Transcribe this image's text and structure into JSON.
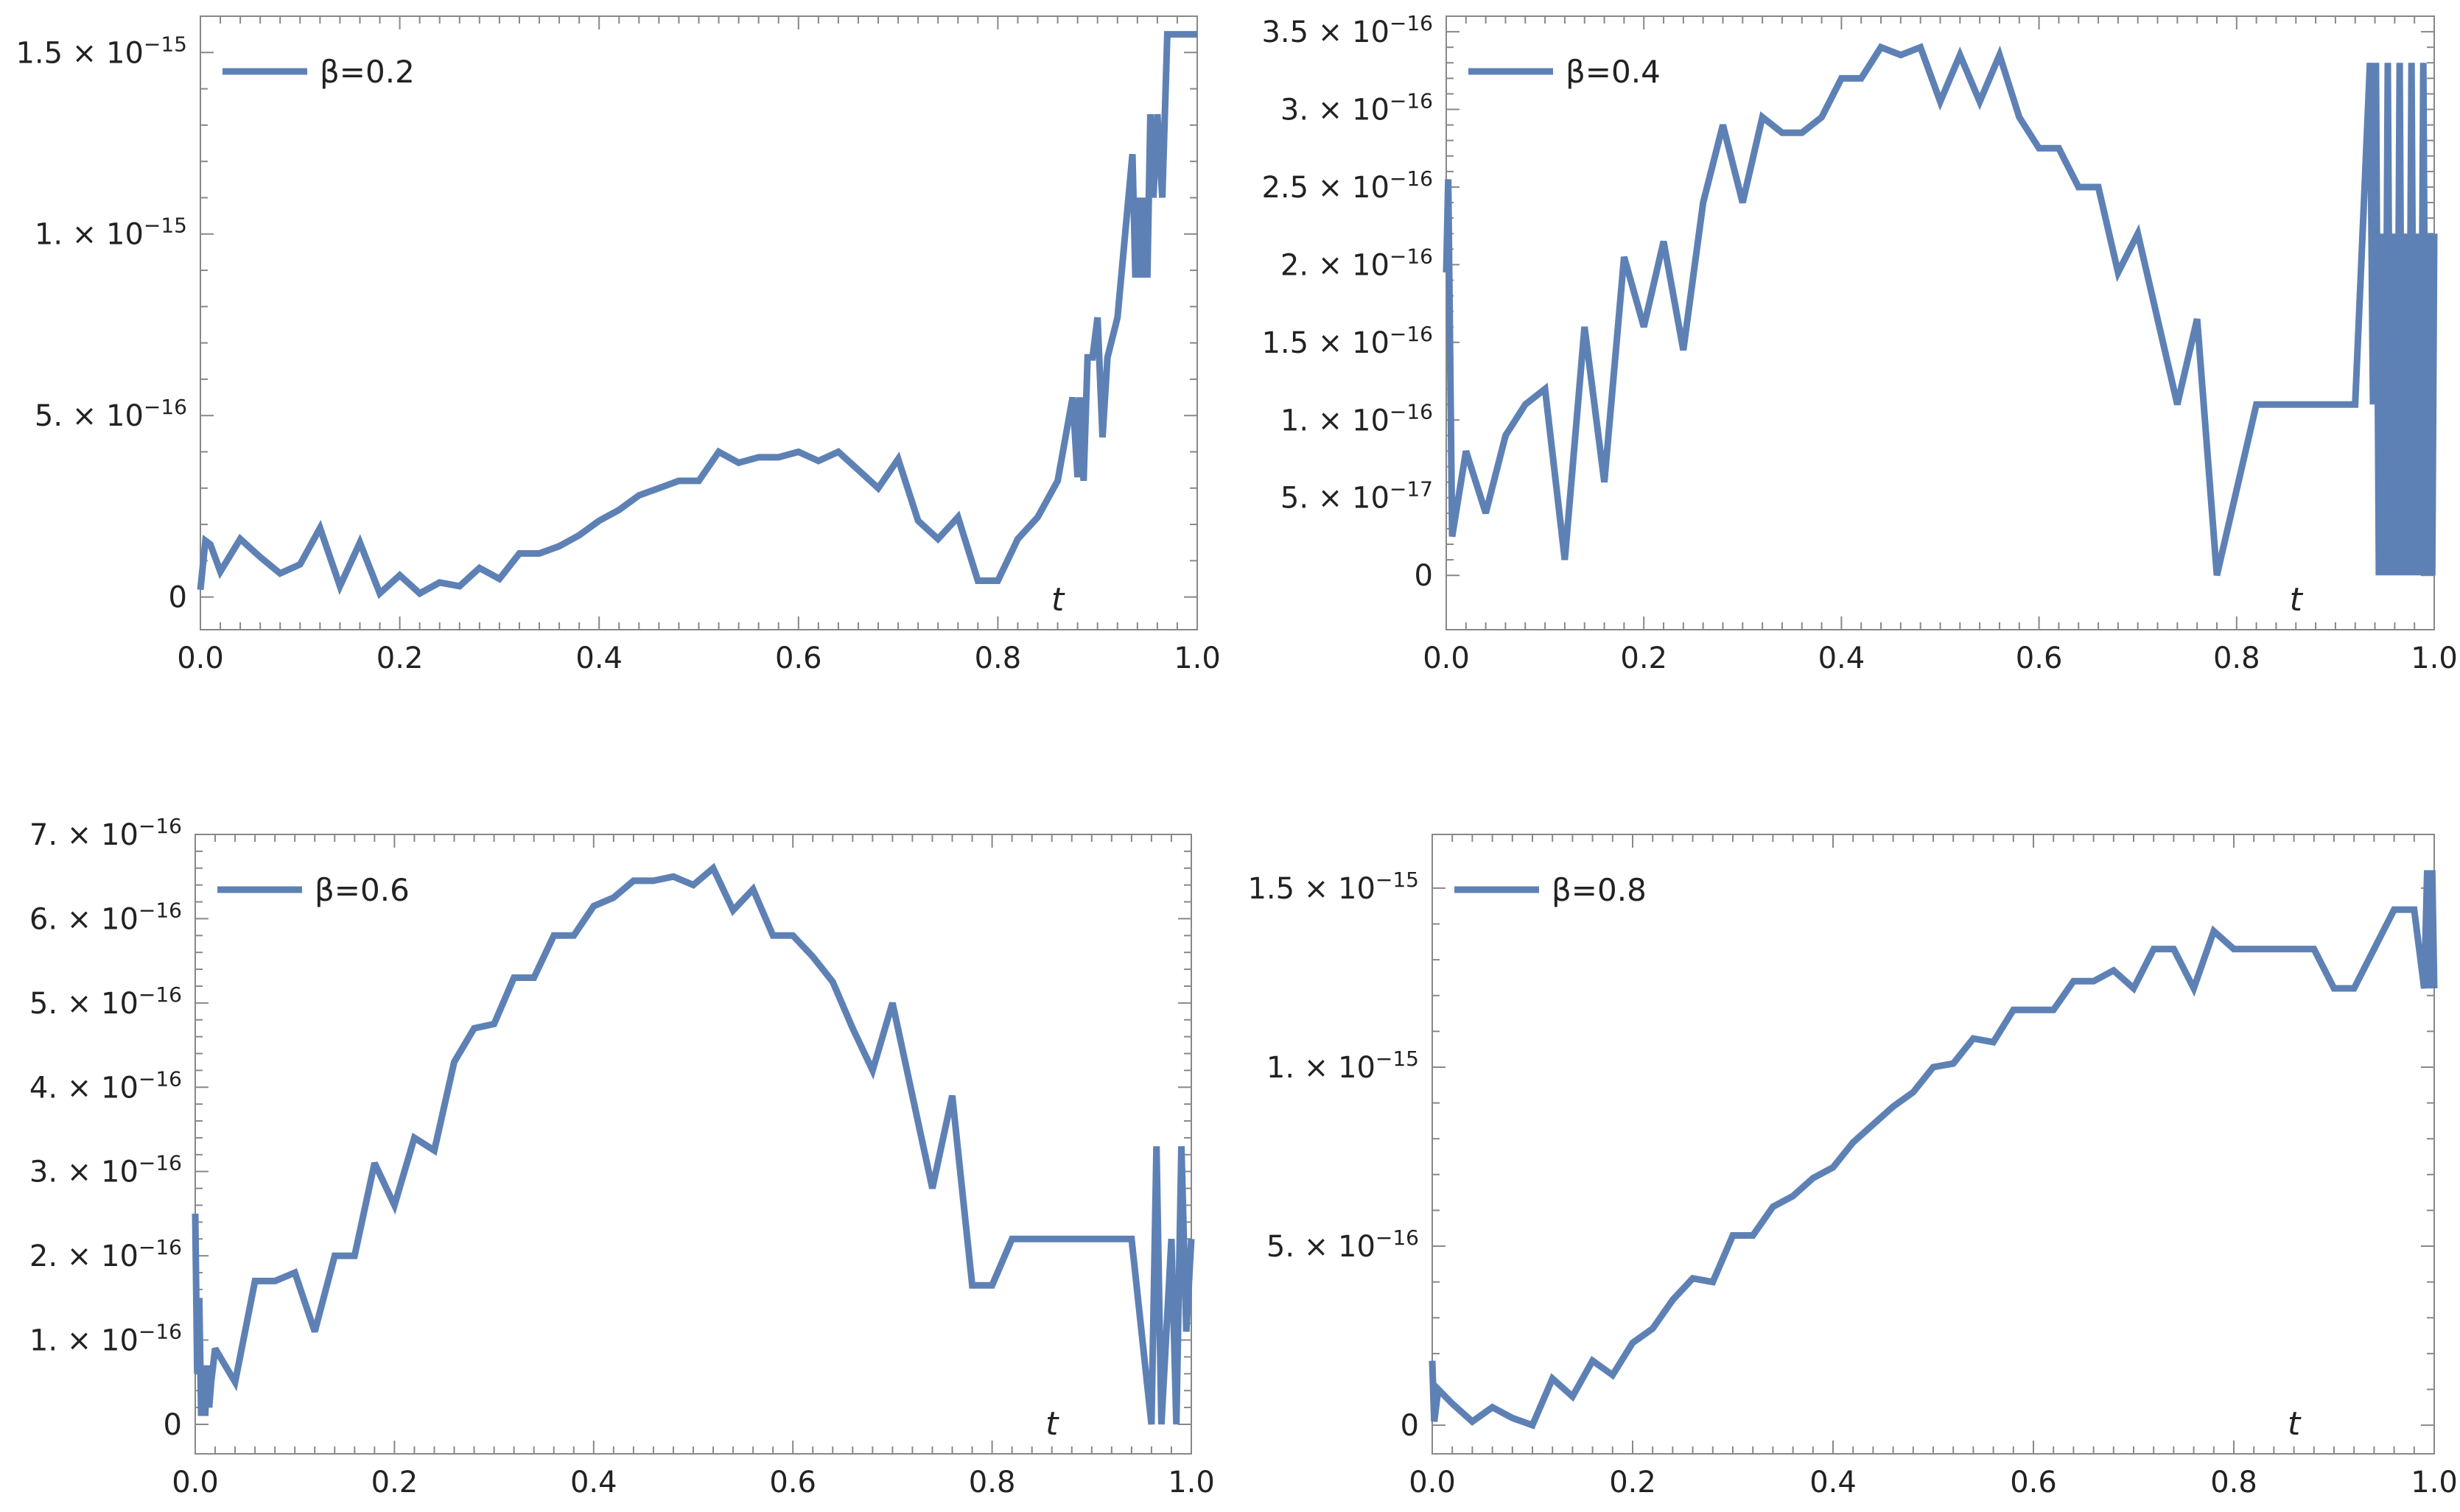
{
  "colors": {
    "series": "#5e81b5",
    "frame": "#888888",
    "text": "#222222"
  },
  "chart_data": [
    {
      "type": "line",
      "xlabel": "t",
      "xlim": [
        0,
        1
      ],
      "ylim": [
        -9e-17,
        1.6e-15
      ],
      "xticks": [
        {
          "value": 0,
          "label": "0.0"
        },
        {
          "value": 0.2,
          "label": "0.2"
        },
        {
          "value": 0.4,
          "label": "0.4"
        },
        {
          "value": 0.6,
          "label": "0.6"
        },
        {
          "value": 0.8,
          "label": "0.8"
        },
        {
          "value": 1.0,
          "label": "1.0"
        }
      ],
      "yticks": [
        {
          "value": 0,
          "mant": "0",
          "exp": ""
        },
        {
          "value": 5e-16,
          "mant": "5.",
          "exp": "−16"
        },
        {
          "value": 1e-15,
          "mant": "1.",
          "exp": "−15"
        },
        {
          "value": 1.5e-15,
          "mant": "1.5",
          "exp": "−15"
        }
      ],
      "series": [
        {
          "name": "β=0.2",
          "x": [
            0.0,
            0.005,
            0.01,
            0.02,
            0.04,
            0.06,
            0.08,
            0.1,
            0.12,
            0.14,
            0.16,
            0.18,
            0.2,
            0.22,
            0.24,
            0.26,
            0.28,
            0.3,
            0.32,
            0.34,
            0.36,
            0.38,
            0.4,
            0.42,
            0.44,
            0.46,
            0.48,
            0.5,
            0.52,
            0.54,
            0.56,
            0.58,
            0.6,
            0.62,
            0.64,
            0.66,
            0.68,
            0.7,
            0.72,
            0.74,
            0.76,
            0.78,
            0.8,
            0.82,
            0.84,
            0.86,
            0.875,
            0.88,
            0.882,
            0.886,
            0.89,
            0.895,
            0.9,
            0.905,
            0.91,
            0.92,
            0.935,
            0.938,
            0.941,
            0.944,
            0.947,
            0.95,
            0.953,
            0.956,
            0.96,
            0.965,
            0.97,
            0.98,
            0.99,
            1.0
          ],
          "y": [
            2e-17,
            1.55e-16,
            1.45e-16,
            7e-17,
            1.6e-16,
            1.1e-16,
            6.5e-17,
            9e-17,
            1.9e-16,
            3e-17,
            1.5e-16,
            1e-17,
            6e-17,
            1e-17,
            4e-17,
            3e-17,
            8e-17,
            5e-17,
            1.2e-16,
            1.2e-16,
            1.4e-16,
            1.7e-16,
            2.1e-16,
            2.4e-16,
            2.8e-16,
            3e-16,
            3.2e-16,
            3.2e-16,
            4e-16,
            3.7e-16,
            3.85e-16,
            3.85e-16,
            4e-16,
            3.75e-16,
            4e-16,
            3.5e-16,
            3e-16,
            3.8e-16,
            2.1e-16,
            1.6e-16,
            2.2e-16,
            4.5e-17,
            4.5e-17,
            1.6e-16,
            2.2e-16,
            3.2e-16,
            5.5e-16,
            3.3e-16,
            5.5e-16,
            3.2e-16,
            6.6e-16,
            6.6e-16,
            7.7e-16,
            4.4e-16,
            6.6e-16,
            7.7e-16,
            1.22e-15,
            8.8e-16,
            1.1e-15,
            8.8e-16,
            1.1e-15,
            8.8e-16,
            1.33e-15,
            1.1e-15,
            1.33e-15,
            1.1e-15,
            1.55e-15,
            1.55e-15,
            1.55e-15,
            1.55e-15
          ]
        }
      ]
    },
    {
      "type": "line",
      "xlabel": "t",
      "xlim": [
        0,
        1
      ],
      "ylim": [
        -3.5e-17,
        3.6e-16
      ],
      "xticks": [
        {
          "value": 0,
          "label": "0.0"
        },
        {
          "value": 0.2,
          "label": "0.2"
        },
        {
          "value": 0.4,
          "label": "0.4"
        },
        {
          "value": 0.6,
          "label": "0.6"
        },
        {
          "value": 0.8,
          "label": "0.8"
        },
        {
          "value": 1.0,
          "label": "1.0"
        }
      ],
      "yticks": [
        {
          "value": 0,
          "mant": "0",
          "exp": ""
        },
        {
          "value": 5e-17,
          "mant": "5.",
          "exp": "−17"
        },
        {
          "value": 1e-16,
          "mant": "1.",
          "exp": "−16"
        },
        {
          "value": 1.5e-16,
          "mant": "1.5",
          "exp": "−16"
        },
        {
          "value": 2e-16,
          "mant": "2.",
          "exp": "−16"
        },
        {
          "value": 2.5e-16,
          "mant": "2.5",
          "exp": "−16"
        },
        {
          "value": 3e-16,
          "mant": "3.",
          "exp": "−16"
        },
        {
          "value": 3.5e-16,
          "mant": "3.5",
          "exp": "−16"
        }
      ],
      "series": [
        {
          "name": "β=0.4",
          "x": [
            0.0,
            0.002,
            0.006,
            0.02,
            0.04,
            0.06,
            0.08,
            0.1,
            0.12,
            0.14,
            0.16,
            0.18,
            0.2,
            0.22,
            0.24,
            0.26,
            0.28,
            0.3,
            0.32,
            0.34,
            0.36,
            0.38,
            0.4,
            0.42,
            0.44,
            0.46,
            0.48,
            0.5,
            0.52,
            0.54,
            0.56,
            0.58,
            0.6,
            0.62,
            0.64,
            0.66,
            0.68,
            0.7,
            0.72,
            0.74,
            0.76,
            0.78,
            0.8,
            0.82,
            0.84,
            0.86,
            0.88,
            0.9,
            0.92,
            0.935,
            0.938,
            0.941,
            0.944,
            0.947,
            0.95,
            0.953,
            0.956,
            0.959,
            0.962,
            0.965,
            0.968,
            0.971,
            0.974,
            0.977,
            0.98,
            0.983,
            0.986,
            0.989,
            0.992,
            0.995,
            0.998,
            1.0
          ],
          "y": [
            1.95e-16,
            2.55e-16,
            2.5e-17,
            8e-17,
            4e-17,
            9e-17,
            1.1e-16,
            1.2e-16,
            1e-17,
            1.6e-16,
            6e-17,
            2.05e-16,
            1.6e-16,
            2.15e-16,
            1.45e-16,
            2.4e-16,
            2.9e-16,
            2.4e-16,
            2.95e-16,
            2.85e-16,
            2.85e-16,
            2.95e-16,
            3.2e-16,
            3.2e-16,
            3.4e-16,
            3.35e-16,
            3.4e-16,
            3.05e-16,
            3.35e-16,
            3.05e-16,
            3.35e-16,
            2.95e-16,
            2.75e-16,
            2.75e-16,
            2.5e-16,
            2.5e-16,
            1.95e-16,
            2.2e-16,
            1.65e-16,
            1.1e-16,
            1.65e-16,
            0.0,
            5.5e-17,
            1.1e-16,
            1.1e-16,
            1.1e-16,
            1.1e-16,
            1.1e-16,
            1.1e-16,
            3.3e-16,
            1.1e-16,
            3.3e-16,
            0.0,
            2.2e-16,
            0.0,
            3.3e-16,
            0.0,
            2.2e-16,
            0.0,
            3.3e-16,
            0.0,
            2.2e-16,
            0.0,
            3.3e-16,
            0.0,
            2.2e-16,
            0.0,
            3.3e-16,
            0.0,
            2.2e-16,
            0.0,
            2.2e-16
          ]
        }
      ]
    },
    {
      "type": "line",
      "xlabel": "t",
      "xlim": [
        0,
        1
      ],
      "ylim": [
        -3.5e-17,
        7e-16
      ],
      "xticks": [
        {
          "value": 0,
          "label": "0.0"
        },
        {
          "value": 0.2,
          "label": "0.2"
        },
        {
          "value": 0.4,
          "label": "0.4"
        },
        {
          "value": 0.6,
          "label": "0.6"
        },
        {
          "value": 0.8,
          "label": "0.8"
        },
        {
          "value": 1.0,
          "label": "1.0"
        }
      ],
      "yticks": [
        {
          "value": 0,
          "mant": "0",
          "exp": ""
        },
        {
          "value": 1e-16,
          "mant": "1.",
          "exp": "−16"
        },
        {
          "value": 2e-16,
          "mant": "2.",
          "exp": "−16"
        },
        {
          "value": 3e-16,
          "mant": "3.",
          "exp": "−16"
        },
        {
          "value": 4e-16,
          "mant": "4.",
          "exp": "−16"
        },
        {
          "value": 5e-16,
          "mant": "5.",
          "exp": "−16"
        },
        {
          "value": 6e-16,
          "mant": "6.",
          "exp": "−16"
        },
        {
          "value": 7e-16,
          "mant": "7.",
          "exp": "−16"
        }
      ],
      "series": [
        {
          "name": "β=0.6",
          "x": [
            0.0,
            0.002,
            0.004,
            0.006,
            0.008,
            0.01,
            0.012,
            0.014,
            0.016,
            0.02,
            0.04,
            0.06,
            0.08,
            0.1,
            0.12,
            0.14,
            0.16,
            0.18,
            0.2,
            0.22,
            0.24,
            0.26,
            0.28,
            0.3,
            0.32,
            0.34,
            0.36,
            0.38,
            0.4,
            0.42,
            0.44,
            0.46,
            0.48,
            0.5,
            0.52,
            0.54,
            0.56,
            0.58,
            0.6,
            0.62,
            0.64,
            0.66,
            0.68,
            0.7,
            0.72,
            0.74,
            0.76,
            0.78,
            0.8,
            0.82,
            0.84,
            0.86,
            0.88,
            0.9,
            0.92,
            0.94,
            0.96,
            0.965,
            0.97,
            0.975,
            0.98,
            0.985,
            0.99,
            0.995,
            1.0
          ],
          "y": [
            2.5e-16,
            6e-17,
            1.5e-16,
            1e-17,
            7e-17,
            1e-17,
            7e-17,
            2e-17,
            5e-17,
            9e-17,
            5e-17,
            1.7e-16,
            1.7e-16,
            1.8e-16,
            1.1e-16,
            2e-16,
            2e-16,
            3.1e-16,
            2.6e-16,
            3.4e-16,
            3.25e-16,
            4.3e-16,
            4.7e-16,
            4.75e-16,
            5.3e-16,
            5.3e-16,
            5.8e-16,
            5.8e-16,
            6.15e-16,
            6.25e-16,
            6.45e-16,
            6.45e-16,
            6.5e-16,
            6.4e-16,
            6.6e-16,
            6.1e-16,
            6.35e-16,
            5.8e-16,
            5.8e-16,
            5.55e-16,
            5.25e-16,
            4.7e-16,
            4.2e-16,
            5e-16,
            3.9e-16,
            2.8e-16,
            3.9e-16,
            1.65e-16,
            1.65e-16,
            2.2e-16,
            2.2e-16,
            2.2e-16,
            2.2e-16,
            2.2e-16,
            2.2e-16,
            2.2e-16,
            0.0,
            3.3e-16,
            0.0,
            1.1e-16,
            2.2e-16,
            0.0,
            3.3e-16,
            1.1e-16,
            2.2e-16
          ]
        }
      ]
    },
    {
      "type": "line",
      "xlabel": "t",
      "xlim": [
        0,
        1
      ],
      "ylim": [
        -8e-17,
        1.65e-15
      ],
      "xticks": [
        {
          "value": 0,
          "label": "0.0"
        },
        {
          "value": 0.2,
          "label": "0.2"
        },
        {
          "value": 0.4,
          "label": "0.4"
        },
        {
          "value": 0.6,
          "label": "0.6"
        },
        {
          "value": 0.8,
          "label": "0.8"
        },
        {
          "value": 1.0,
          "label": "1.0"
        }
      ],
      "yticks": [
        {
          "value": 0,
          "mant": "0",
          "exp": ""
        },
        {
          "value": 5e-16,
          "mant": "5.",
          "exp": "−16"
        },
        {
          "value": 1e-15,
          "mant": "1.",
          "exp": "−15"
        },
        {
          "value": 1.5e-15,
          "mant": "1.5",
          "exp": "−15"
        }
      ],
      "series": [
        {
          "name": "β=0.8",
          "x": [
            0.0,
            0.002,
            0.006,
            0.02,
            0.04,
            0.06,
            0.08,
            0.1,
            0.12,
            0.14,
            0.16,
            0.18,
            0.2,
            0.22,
            0.24,
            0.26,
            0.28,
            0.3,
            0.32,
            0.34,
            0.36,
            0.38,
            0.4,
            0.42,
            0.44,
            0.46,
            0.48,
            0.5,
            0.52,
            0.54,
            0.56,
            0.58,
            0.6,
            0.62,
            0.64,
            0.66,
            0.68,
            0.7,
            0.72,
            0.74,
            0.76,
            0.78,
            0.8,
            0.82,
            0.84,
            0.86,
            0.88,
            0.9,
            0.92,
            0.94,
            0.96,
            0.98,
            0.99,
            0.993,
            0.996,
            0.998,
            1.0
          ],
          "y": [
            1.8e-16,
            1e-17,
            1e-16,
            6e-17,
            1e-17,
            5e-17,
            2e-17,
            0.0,
            1.3e-16,
            8e-17,
            1.8e-16,
            1.4e-16,
            2.3e-16,
            2.7e-16,
            3.5e-16,
            4.1e-16,
            4e-16,
            5.3e-16,
            5.3e-16,
            6.1e-16,
            6.4e-16,
            6.9e-16,
            7.2e-16,
            7.9e-16,
            8.4e-16,
            8.9e-16,
            9.3e-16,
            1e-15,
            1.01e-15,
            1.08e-15,
            1.07e-15,
            1.16e-15,
            1.16e-15,
            1.16e-15,
            1.24e-15,
            1.24e-15,
            1.27e-15,
            1.22e-15,
            1.33e-15,
            1.33e-15,
            1.22e-15,
            1.38e-15,
            1.33e-15,
            1.33e-15,
            1.33e-15,
            1.33e-15,
            1.33e-15,
            1.22e-15,
            1.22e-15,
            1.33e-15,
            1.44e-15,
            1.44e-15,
            1.22e-15,
            1.55e-15,
            1.22e-15,
            1.55e-15,
            1.22e-15
          ]
        }
      ]
    }
  ]
}
